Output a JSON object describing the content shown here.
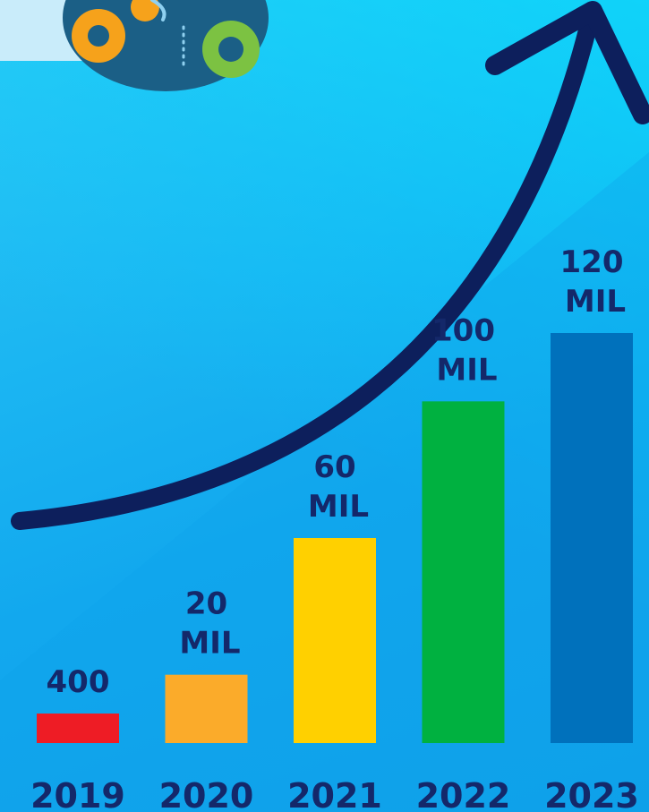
{
  "chart_data": {
    "type": "bar",
    "title": "",
    "xlabel": "",
    "ylabel": "",
    "categories": [
      "2019",
      "2020",
      "2021",
      "2022",
      "2023"
    ],
    "values": [
      400,
      20000000,
      60000000,
      100000000,
      120000000
    ],
    "value_labels": [
      [
        "400"
      ],
      [
        "20",
        "MIL"
      ],
      [
        "60",
        "MIL"
      ],
      [
        "100",
        "MIL"
      ],
      [
        "120",
        "MIL"
      ]
    ],
    "ylim": [
      0,
      120000000
    ],
    "grid": false,
    "legend": "none",
    "colors": [
      "#ee1c25",
      "#fbab2a",
      "#ffd000",
      "#00b140",
      "#0071bc"
    ],
    "label_color": "#14286a",
    "arrow_color": "#0d1f5c"
  }
}
